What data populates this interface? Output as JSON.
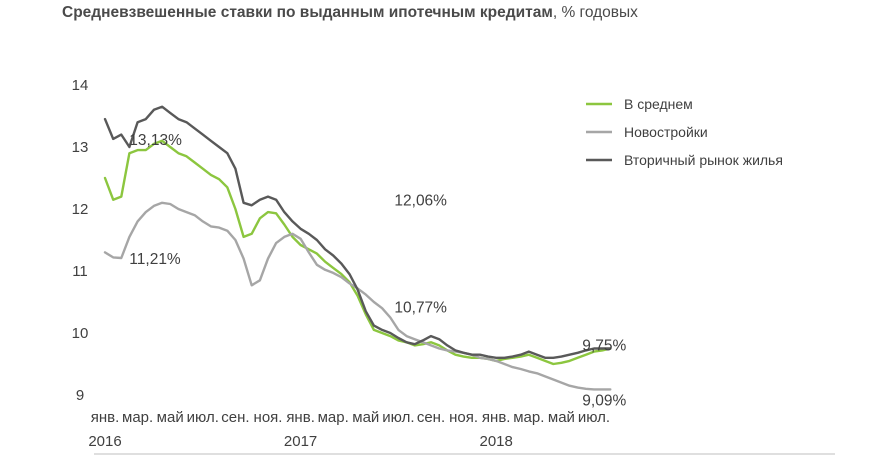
{
  "chart_data": {
    "type": "line",
    "title": "Средневзвешенные ставки по выданным ипотечным кредитам",
    "subtitle": ", % годовых",
    "ylim": [
      9,
      14
    ],
    "yticks": [
      "9",
      "10",
      "11",
      "12",
      "13",
      "14"
    ],
    "grid": false,
    "legend_position": "top-right",
    "x_labels": [
      {
        "label": "янв.",
        "year": "2016"
      },
      {
        "label": "мар.",
        "year": ""
      },
      {
        "label": "май",
        "year": ""
      },
      {
        "label": "июл.",
        "year": ""
      },
      {
        "label": "сен.",
        "year": ""
      },
      {
        "label": "ноя.",
        "year": ""
      },
      {
        "label": "янв.",
        "year": "2017"
      },
      {
        "label": "мар.",
        "year": ""
      },
      {
        "label": "май",
        "year": ""
      },
      {
        "label": "июл.",
        "year": ""
      },
      {
        "label": "сен.",
        "year": ""
      },
      {
        "label": "ноя.",
        "year": ""
      },
      {
        "label": "янв.",
        "year": "2018"
      },
      {
        "label": "мар.",
        "year": ""
      },
      {
        "label": "май",
        "year": ""
      },
      {
        "label": "июл.",
        "year": ""
      }
    ],
    "x": [
      0,
      0.5,
      1,
      1.5,
      2,
      2.5,
      3,
      3.5,
      4,
      4.5,
      5,
      5.5,
      6,
      6.5,
      7,
      7.5,
      8,
      8.5,
      9,
      9.5,
      10,
      10.5,
      11,
      11.5,
      12,
      12.5,
      13,
      13.5,
      14,
      14.5,
      15,
      15.5,
      16,
      16.5,
      17,
      17.5,
      18,
      18.5,
      19,
      19.5,
      20,
      20.5,
      21,
      21.5,
      22,
      22.5,
      23,
      23.5,
      24,
      24.5,
      25,
      25.5,
      26,
      26.5,
      27,
      27.5,
      28,
      28.5,
      29,
      29.5,
      30,
      30.5,
      31
    ],
    "series": [
      {
        "name": "В среднем",
        "color": "#8cc63f",
        "values": [
          12.5,
          12.15,
          12.2,
          12.9,
          12.95,
          12.95,
          13.05,
          13.1,
          13.0,
          12.9,
          12.85,
          12.75,
          12.65,
          12.55,
          12.48,
          12.35,
          12.0,
          11.55,
          11.6,
          11.85,
          11.95,
          11.93,
          11.75,
          11.55,
          11.42,
          11.35,
          11.28,
          11.15,
          11.05,
          10.95,
          10.82,
          10.6,
          10.3,
          10.05,
          10.0,
          9.95,
          9.88,
          9.85,
          9.8,
          9.82,
          9.85,
          9.8,
          9.72,
          9.65,
          9.62,
          9.6,
          9.6,
          9.58,
          9.55,
          9.58,
          9.6,
          9.62,
          9.65,
          9.6,
          9.55,
          9.5,
          9.52,
          9.55,
          9.6,
          9.65,
          9.7,
          9.72,
          9.75
        ]
      },
      {
        "name": "Новостройки",
        "color": "#a6a6a6",
        "values": [
          11.3,
          11.22,
          11.21,
          11.55,
          11.8,
          11.95,
          12.05,
          12.1,
          12.08,
          12.0,
          11.95,
          11.9,
          11.8,
          11.72,
          11.7,
          11.65,
          11.5,
          11.2,
          10.77,
          10.85,
          11.2,
          11.45,
          11.55,
          11.6,
          11.52,
          11.3,
          11.1,
          11.02,
          10.97,
          10.9,
          10.8,
          10.72,
          10.62,
          10.5,
          10.4,
          10.25,
          10.05,
          9.95,
          9.9,
          9.85,
          9.8,
          9.75,
          9.72,
          9.7,
          9.68,
          9.65,
          9.6,
          9.58,
          9.55,
          9.5,
          9.45,
          9.42,
          9.38,
          9.35,
          9.3,
          9.25,
          9.2,
          9.15,
          9.12,
          9.1,
          9.09,
          9.09,
          9.09
        ]
      },
      {
        "name": "Вторичный рынок жилья",
        "color": "#595959",
        "values": [
          13.45,
          13.13,
          13.2,
          13.0,
          13.4,
          13.45,
          13.6,
          13.65,
          13.55,
          13.45,
          13.4,
          13.3,
          13.2,
          13.1,
          13.0,
          12.9,
          12.65,
          12.1,
          12.06,
          12.15,
          12.2,
          12.15,
          11.95,
          11.8,
          11.68,
          11.6,
          11.5,
          11.35,
          11.25,
          11.12,
          10.95,
          10.7,
          10.35,
          10.12,
          10.05,
          10.0,
          9.92,
          9.85,
          9.82,
          9.88,
          9.95,
          9.9,
          9.8,
          9.72,
          9.68,
          9.65,
          9.65,
          9.62,
          9.6,
          9.6,
          9.62,
          9.65,
          9.7,
          9.65,
          9.6,
          9.6,
          9.62,
          9.65,
          9.68,
          9.72,
          9.75,
          9.75,
          9.75
        ]
      }
    ],
    "annotations": [
      {
        "text": "13,13%",
        "x": 1,
        "y": 13.13
      },
      {
        "text": "11,21%",
        "x": 1,
        "y": 11.21
      },
      {
        "text": "12,06%",
        "x": 18,
        "y": 12.06
      },
      {
        "text": "10,77%",
        "x": 18,
        "y": 10.77
      },
      {
        "text": "9,75%",
        "x": 31,
        "y": 9.75
      },
      {
        "text": "9,09%",
        "x": 31,
        "y": 9.09
      }
    ]
  }
}
